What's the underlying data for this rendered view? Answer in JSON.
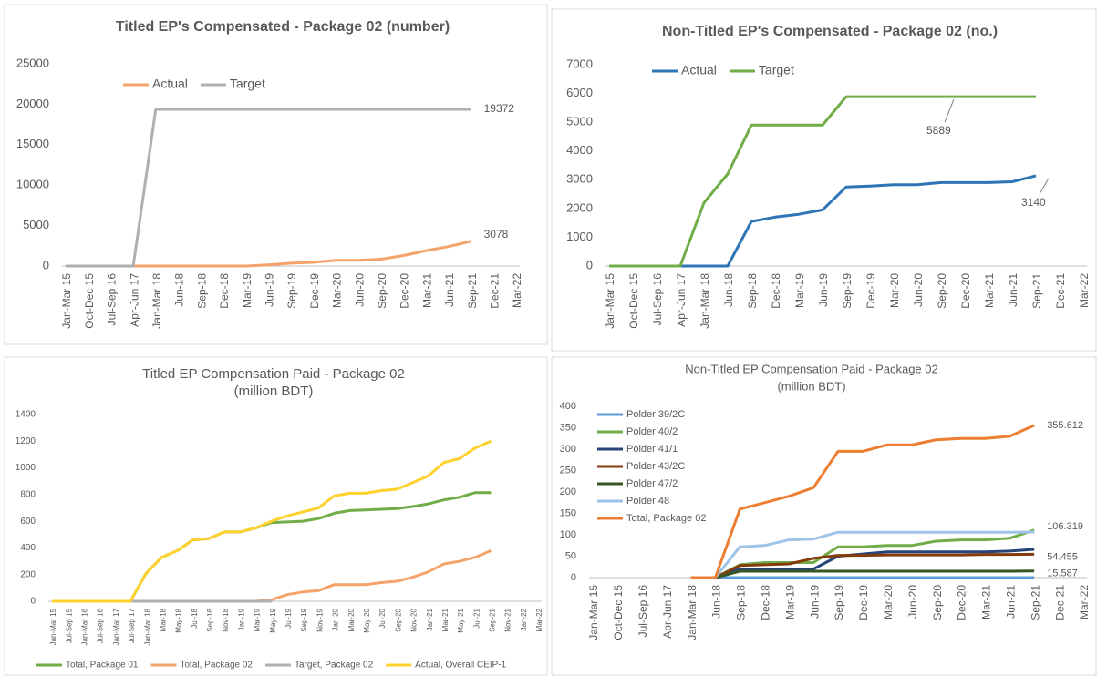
{
  "chart_data": [
    {
      "type": "line",
      "title": "Titled EP's Compensated - Package 02 (number)",
      "categories": [
        "Jan-Mar 15",
        "Oct-Dec 15",
        "Jul-Sep 16",
        "Apr-Jun 17",
        "Jan-Mar 18",
        "Jun-18",
        "Sep-18",
        "Dec-18",
        "Mar-19",
        "Jun-19",
        "Sep-19",
        "Dec-19",
        "Mar-20",
        "Jun-20",
        "Sep-20",
        "Dec-20",
        "Mar-21",
        "Jun-21",
        "Sep-21",
        "Dec-21",
        "Mar-22"
      ],
      "series": [
        {
          "name": "Actual",
          "color": "#f4a46a",
          "values": [
            0,
            0,
            0,
            0,
            0,
            0,
            0,
            0,
            0,
            150,
            350,
            450,
            700,
            700,
            850,
            1300,
            1900,
            2400,
            3078,
            null,
            null
          ]
        },
        {
          "name": "Target",
          "color": "#b0b0b0",
          "values": [
            0,
            0,
            0,
            0,
            19372,
            19372,
            19372,
            19372,
            19372,
            19372,
            19372,
            19372,
            19372,
            19372,
            19372,
            19372,
            19372,
            19372,
            19372,
            null,
            null
          ]
        }
      ],
      "ylim": [
        0,
        25000
      ],
      "yticks": [
        0,
        5000,
        10000,
        15000,
        20000,
        25000
      ],
      "grid": false,
      "legend": "top-left"
    },
    {
      "type": "line",
      "title": "Non-Titled EP's Compensated - Package 02 (no.)",
      "categories": [
        "Jan-Mar 15",
        "Oct-Dec 15",
        "Jul-Sep 16",
        "Apr-Jun 17",
        "Jan-Mar 18",
        "Jun-18",
        "Sep-18",
        "Dec-18",
        "Mar-19",
        "Jun-19",
        "Sep-19",
        "Dec-19",
        "Mar-20",
        "Jun-20",
        "Sep-20",
        "Dec-20",
        "Mar-21",
        "Jun-21",
        "Sep-21",
        "Dec-21",
        "Mar-22"
      ],
      "series": [
        {
          "name": "Actual",
          "color": "#2e75b6",
          "values": [
            0,
            0,
            0,
            0,
            0,
            0,
            1550,
            1700,
            1800,
            1950,
            2750,
            2780,
            2830,
            2830,
            2900,
            2900,
            2900,
            2930,
            3140,
            null,
            null
          ]
        },
        {
          "name": "Target",
          "color": "#70ad47",
          "values": [
            0,
            0,
            0,
            0,
            2200,
            3200,
            4900,
            4900,
            4900,
            4900,
            5889,
            5889,
            5889,
            5889,
            5889,
            5889,
            5889,
            5889,
            5889,
            null,
            null
          ]
        }
      ],
      "ylim": [
        0,
        7000
      ],
      "yticks": [
        0,
        1000,
        2000,
        3000,
        4000,
        5000,
        6000,
        7000
      ],
      "grid": false,
      "legend": "top-left"
    },
    {
      "type": "line",
      "title": "Titled EP Compensation Paid - Package 02",
      "subtitle": "(million BDT)",
      "categories": [
        "Jan-Mar 15",
        "Jul-Sep 15",
        "Jan-Mar 16",
        "Jul-Sep 16",
        "Jan-Mar 17",
        "Jul-Sep 17",
        "Jan-Mar 18",
        "Mar-18",
        "May-18",
        "Jul-18",
        "Sep-18",
        "Nov-18",
        "Jan-19",
        "Mar-19",
        "May-19",
        "Jul-19",
        "Sep-19",
        "Nov-19",
        "Jan-20",
        "Mar-20",
        "May-20",
        "Jul-20",
        "Sep-20",
        "Nov-20",
        "Jan-21",
        "Mar-21",
        "May-21",
        "Jul-21",
        "Sep-21",
        "Nov-21",
        "Jan-22",
        "Mar-22"
      ],
      "series": [
        {
          "name": "Total, Package 01",
          "color": "#70ad47",
          "values": [
            0,
            0,
            0,
            0,
            0,
            0,
            210,
            330,
            380,
            460,
            470,
            520,
            520,
            550,
            590,
            595,
            600,
            620,
            660,
            680,
            685,
            690,
            695,
            710,
            730,
            760,
            780,
            815,
            815,
            null,
            null,
            null
          ]
        },
        {
          "name": "Total, Package 02",
          "color": "#f4a46a",
          "values": [
            0,
            0,
            0,
            0,
            0,
            0,
            0,
            0,
            0,
            0,
            0,
            0,
            0,
            0,
            10,
            50,
            70,
            80,
            125,
            125,
            125,
            140,
            150,
            180,
            220,
            280,
            300,
            330,
            380,
            null,
            null,
            null
          ]
        },
        {
          "name": "Target, Package 02",
          "color": "#b0b0b0",
          "values": [
            0,
            0,
            0,
            0,
            0,
            0,
            0,
            0,
            0,
            0,
            0,
            0,
            0,
            0,
            0,
            null,
            null,
            null,
            null,
            null,
            null,
            null,
            null,
            null,
            null,
            null,
            null,
            null,
            null,
            null,
            null,
            null
          ]
        },
        {
          "name": "Actual, Overall CEIP-1",
          "color": "#ffd12e",
          "values": [
            0,
            0,
            0,
            0,
            0,
            0,
            210,
            330,
            380,
            460,
            470,
            520,
            520,
            550,
            600,
            640,
            670,
            700,
            790,
            810,
            810,
            830,
            840,
            890,
            940,
            1040,
            1070,
            1150,
            1200,
            null,
            null,
            null
          ]
        }
      ],
      "ylim": [
        0,
        1400
      ],
      "yticks": [
        0,
        200,
        400,
        600,
        800,
        1000,
        1200,
        1400
      ],
      "grid": false,
      "legend": "bottom"
    },
    {
      "type": "line",
      "title": "Non-Titled EP Compensation Paid - Package 02",
      "subtitle": "(million BDT)",
      "categories": [
        "Jan-Mar 15",
        "Oct-Dec 15",
        "Jul-Sep 16",
        "Apr-Jun 17",
        "Jan-Mar 18",
        "Jun-18",
        "Sep-18",
        "Dec-18",
        "Mar-19",
        "Jun-19",
        "Sep-19",
        "Dec-19",
        "Mar-20",
        "Jun-20",
        "Sep-20",
        "Dec-20",
        "Mar-21",
        "Jun-21",
        "Sep-21",
        "Dec-21",
        "Mar-22"
      ],
      "series": [
        {
          "name": "Polder 39/2C",
          "color": "#5b9bd5",
          "values": [
            null,
            null,
            null,
            null,
            0,
            0,
            0,
            0,
            0,
            0,
            0,
            0,
            0,
            0,
            0,
            0,
            0,
            0,
            0,
            null,
            null
          ]
        },
        {
          "name": "Polder 40/2",
          "color": "#70ad47",
          "values": [
            null,
            null,
            null,
            null,
            0,
            0,
            30,
            35,
            35,
            35,
            72,
            72,
            75,
            75,
            85,
            88,
            88,
            92,
            111,
            null,
            null
          ]
        },
        {
          "name": "Polder 41/1",
          "color": "#264478",
          "values": [
            null,
            null,
            null,
            null,
            0,
            0,
            20,
            20,
            20,
            20,
            50,
            55,
            60,
            60,
            60,
            60,
            60,
            62,
            66,
            null,
            null
          ]
        },
        {
          "name": "Polder 43/2C",
          "color": "#843c0c",
          "values": [
            null,
            null,
            null,
            null,
            0,
            0,
            28,
            30,
            32,
            45,
            52,
            52,
            53,
            53,
            53,
            53,
            54,
            54,
            54.455,
            null,
            null
          ]
        },
        {
          "name": "Polder 47/2",
          "color": "#375623",
          "values": [
            null,
            null,
            null,
            null,
            0,
            0,
            15,
            15,
            15,
            15,
            15,
            15,
            15,
            15,
            15,
            15,
            15,
            15,
            15.587,
            null,
            null
          ]
        },
        {
          "name": "Polder 48",
          "color": "#9dc3e6",
          "values": [
            null,
            null,
            null,
            null,
            0,
            0,
            72,
            75,
            88,
            90,
            106,
            106,
            106,
            106,
            106,
            106,
            106,
            106,
            106.319,
            null,
            null
          ]
        },
        {
          "name": "Total, Package 02",
          "color": "#ed7d31",
          "values": [
            null,
            null,
            null,
            null,
            0,
            0,
            160,
            175,
            190,
            210,
            295,
            295,
            310,
            310,
            322,
            325,
            325,
            330,
            355.612,
            null,
            null
          ]
        }
      ],
      "ylim": [
        0,
        400
      ],
      "yticks": [
        0,
        50,
        100,
        150,
        200,
        250,
        300,
        350,
        400
      ],
      "grid": false,
      "legend": "left"
    }
  ]
}
